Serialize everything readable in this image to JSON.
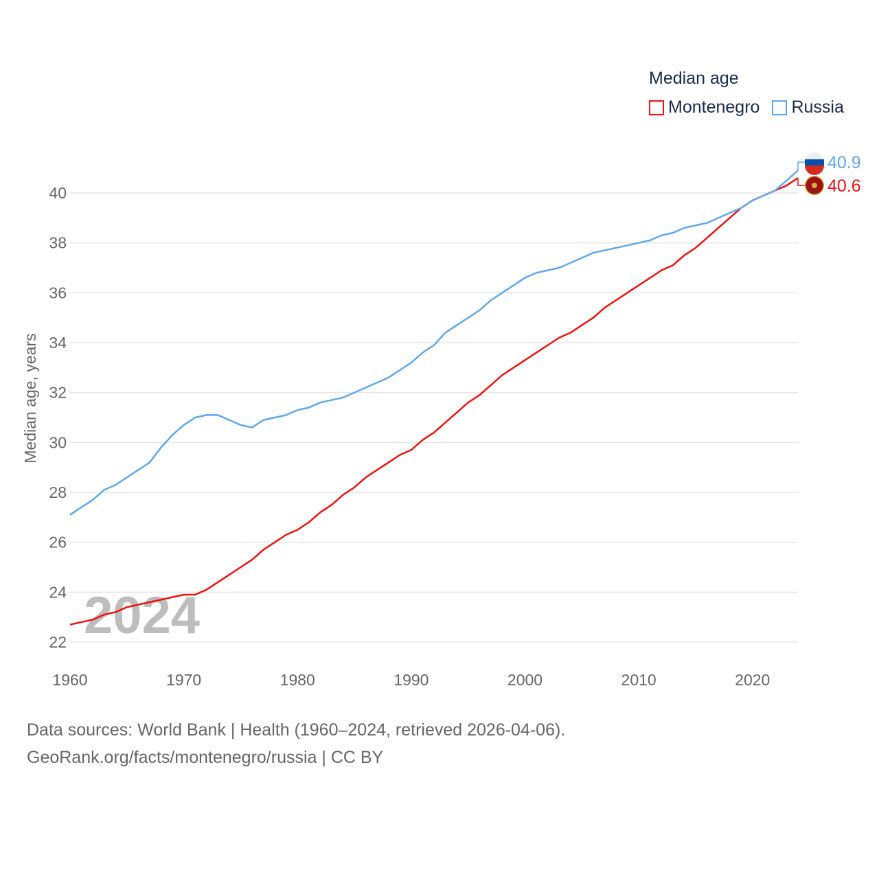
{
  "chart_data": {
    "type": "line",
    "title": "Median age",
    "ylabel": "Median age, years",
    "xlabel": "",
    "xlim": [
      1960,
      2024
    ],
    "ylim": [
      21,
      41.6
    ],
    "x_ticks": [
      1960,
      1970,
      1980,
      1990,
      2000,
      2010,
      2020
    ],
    "y_ticks": [
      22,
      24,
      26,
      28,
      30,
      32,
      34,
      36,
      38,
      40
    ],
    "grid": true,
    "legend_position": "top-right",
    "watermark_year": "2024",
    "x": [
      1960,
      1961,
      1962,
      1963,
      1964,
      1965,
      1966,
      1967,
      1968,
      1969,
      1970,
      1971,
      1972,
      1973,
      1974,
      1975,
      1976,
      1977,
      1978,
      1979,
      1980,
      1981,
      1982,
      1983,
      1984,
      1985,
      1986,
      1987,
      1988,
      1989,
      1990,
      1991,
      1992,
      1993,
      1994,
      1995,
      1996,
      1997,
      1998,
      1999,
      2000,
      2001,
      2002,
      2003,
      2004,
      2005,
      2006,
      2007,
      2008,
      2009,
      2010,
      2011,
      2012,
      2013,
      2014,
      2015,
      2016,
      2017,
      2018,
      2019,
      2020,
      2021,
      2022,
      2023,
      2024
    ],
    "series": [
      {
        "name": "Montenegro",
        "color": "#ee1111",
        "end_label": "40.6",
        "flag": "montenegro-flag",
        "values": [
          22.7,
          22.8,
          22.9,
          23.1,
          23.2,
          23.4,
          23.5,
          23.6,
          23.7,
          23.8,
          23.9,
          23.9,
          24.1,
          24.4,
          24.7,
          25.0,
          25.3,
          25.7,
          26.0,
          26.3,
          26.5,
          26.8,
          27.2,
          27.5,
          27.9,
          28.2,
          28.6,
          28.9,
          29.2,
          29.5,
          29.7,
          30.1,
          30.4,
          30.8,
          31.2,
          31.6,
          31.9,
          32.3,
          32.7,
          33.0,
          33.3,
          33.6,
          33.9,
          34.2,
          34.4,
          34.7,
          35.0,
          35.4,
          35.7,
          36.0,
          36.3,
          36.6,
          36.9,
          37.1,
          37.5,
          37.8,
          38.2,
          38.6,
          39.0,
          39.4,
          39.7,
          39.9,
          40.1,
          40.3,
          40.6
        ]
      },
      {
        "name": "Russia",
        "color": "#5fa8ec",
        "end_label": "40.9",
        "flag": "russia-flag",
        "values": [
          27.1,
          27.4,
          27.7,
          28.1,
          28.3,
          28.6,
          28.9,
          29.2,
          29.8,
          30.3,
          30.7,
          31.0,
          31.1,
          31.1,
          30.9,
          30.7,
          30.6,
          30.9,
          31.0,
          31.1,
          31.3,
          31.4,
          31.6,
          31.7,
          31.8,
          32.0,
          32.2,
          32.4,
          32.6,
          32.9,
          33.2,
          33.6,
          33.9,
          34.4,
          34.7,
          35.0,
          35.3,
          35.7,
          36.0,
          36.3,
          36.6,
          36.8,
          36.9,
          37.0,
          37.2,
          37.4,
          37.6,
          37.7,
          37.8,
          37.9,
          38.0,
          38.1,
          38.3,
          38.4,
          38.6,
          38.7,
          38.8,
          39.0,
          39.2,
          39.4,
          39.7,
          39.9,
          40.1,
          40.5,
          40.9
        ]
      }
    ]
  },
  "footer": {
    "line1": "Data sources: World Bank | Health (1960–2024, retrieved 2026-04-06).",
    "line2": "GeoRank.org/facts/montenegro/russia | CC BY"
  }
}
